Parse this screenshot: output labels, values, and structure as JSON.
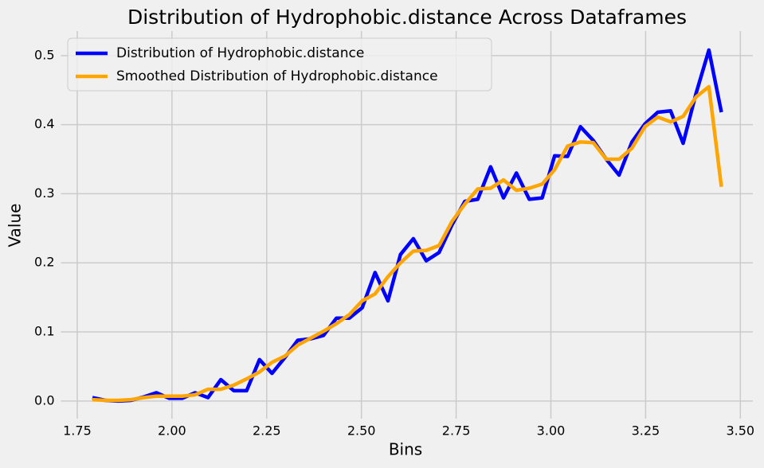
{
  "chart_data": {
    "type": "line",
    "title": "Distribution of Hydrophobic.distance Across Dataframes",
    "xlabel": "Bins",
    "ylabel": "Value",
    "x": [
      1.79,
      1.824,
      1.858,
      1.892,
      1.926,
      1.959,
      1.993,
      2.027,
      2.061,
      2.095,
      2.129,
      2.163,
      2.197,
      2.231,
      2.264,
      2.298,
      2.332,
      2.366,
      2.4,
      2.434,
      2.468,
      2.502,
      2.536,
      2.57,
      2.603,
      2.637,
      2.671,
      2.705,
      2.739,
      2.773,
      2.807,
      2.841,
      2.875,
      2.909,
      2.943,
      2.977,
      3.01,
      3.044,
      3.078,
      3.112,
      3.146,
      3.18,
      3.214,
      3.248,
      3.282,
      3.316,
      3.349,
      3.383,
      3.417,
      3.45
    ],
    "series": [
      {
        "name": "Distribution of Hydrophobic.distance",
        "color": "#0000ff",
        "values": [
          0.005,
          0.001,
          0.0,
          0.001,
          0.006,
          0.012,
          0.004,
          0.004,
          0.012,
          0.005,
          0.031,
          0.015,
          0.015,
          0.06,
          0.04,
          0.063,
          0.088,
          0.09,
          0.095,
          0.12,
          0.12,
          0.135,
          0.186,
          0.145,
          0.212,
          0.235,
          0.203,
          0.215,
          0.255,
          0.289,
          0.292,
          0.339,
          0.294,
          0.33,
          0.292,
          0.294,
          0.355,
          0.354,
          0.397,
          0.377,
          0.35,
          0.327,
          0.375,
          0.401,
          0.418,
          0.42,
          0.373,
          0.445,
          0.508,
          0.418
        ]
      },
      {
        "name": "Smoothed Distribution of Hydrophobic.distance",
        "color": "#ffa500",
        "values": [
          0.002,
          0.001,
          0.001,
          0.002,
          0.005,
          0.007,
          0.007,
          0.007,
          0.009,
          0.017,
          0.017,
          0.023,
          0.032,
          0.042,
          0.056,
          0.065,
          0.081,
          0.091,
          0.101,
          0.112,
          0.125,
          0.145,
          0.155,
          0.18,
          0.2,
          0.217,
          0.218,
          0.225,
          0.26,
          0.285,
          0.307,
          0.308,
          0.32,
          0.305,
          0.308,
          0.314,
          0.335,
          0.369,
          0.375,
          0.374,
          0.35,
          0.35,
          0.366,
          0.397,
          0.411,
          0.404,
          0.412,
          0.44,
          0.455,
          0.31
        ]
      }
    ],
    "xlim": [
      1.707,
      3.533
    ],
    "ylim": [
      -0.0255,
      0.5355
    ],
    "xticks": [
      1.75,
      {
        "value": 2.0,
        "label": "2.00"
      },
      2.25,
      {
        "value": 2.5,
        "label": "2.50"
      },
      2.75,
      {
        "value": 3.0,
        "label": "3.00"
      },
      3.25,
      {
        "value": 3.5,
        "label": "3.50"
      }
    ],
    "yticks": [
      {
        "value": 0,
        "label": "0.0"
      },
      0.1,
      0.2,
      0.3,
      0.4,
      0.5
    ],
    "grid": true,
    "legend": "upper-left"
  }
}
